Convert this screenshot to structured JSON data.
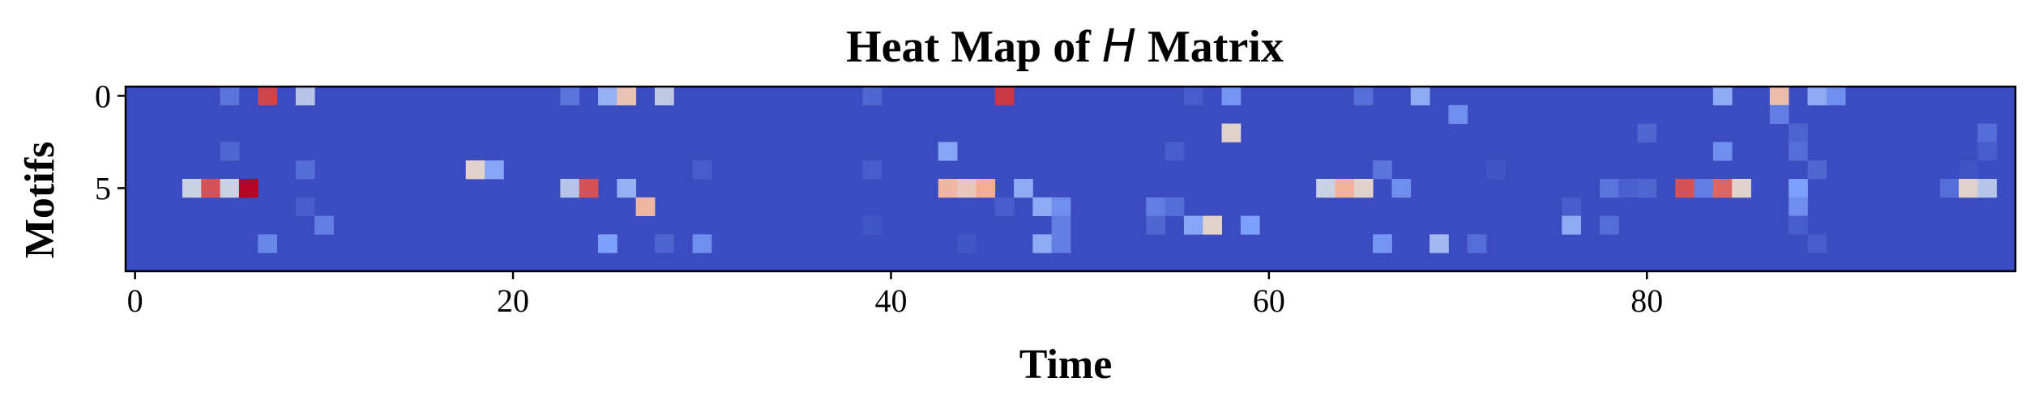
{
  "chart_data": {
    "type": "heatmap",
    "title_prefix": "Heat Map of ",
    "title_var": "H",
    "title_suffix": " Matrix",
    "xlabel": "Time",
    "ylabel": "Motifs",
    "n_cols": 100,
    "n_rows": 10,
    "xticks": [
      0,
      20,
      40,
      60,
      80
    ],
    "yticks": [
      0,
      5
    ],
    "colormap": "coolwarm",
    "background_value": 0.0,
    "cells": [
      [
        0,
        5,
        0.12
      ],
      [
        0,
        7,
        0.9
      ],
      [
        0,
        9,
        0.4
      ],
      [
        0,
        23,
        0.12
      ],
      [
        0,
        25,
        0.32
      ],
      [
        0,
        26,
        0.62
      ],
      [
        0,
        28,
        0.42
      ],
      [
        0,
        39,
        0.08
      ],
      [
        0,
        46,
        0.92
      ],
      [
        0,
        56,
        0.05
      ],
      [
        0,
        58,
        0.22
      ],
      [
        0,
        65,
        0.1
      ],
      [
        0,
        68,
        0.3
      ],
      [
        0,
        84,
        0.3
      ],
      [
        0,
        87,
        0.65
      ],
      [
        0,
        89,
        0.3
      ],
      [
        0,
        90,
        0.2
      ],
      [
        1,
        70,
        0.2
      ],
      [
        1,
        87,
        0.15
      ],
      [
        2,
        58,
        0.55
      ],
      [
        2,
        80,
        0.08
      ],
      [
        2,
        88,
        0.07
      ],
      [
        2,
        98,
        0.1
      ],
      [
        3,
        5,
        0.08
      ],
      [
        3,
        43,
        0.28
      ],
      [
        3,
        55,
        0.05
      ],
      [
        3,
        84,
        0.2
      ],
      [
        3,
        88,
        0.1
      ],
      [
        3,
        98,
        0.05
      ],
      [
        4,
        9,
        0.1
      ],
      [
        4,
        18,
        0.55
      ],
      [
        4,
        19,
        0.28
      ],
      [
        4,
        30,
        0.05
      ],
      [
        4,
        39,
        0.05
      ],
      [
        4,
        66,
        0.12
      ],
      [
        4,
        72,
        0.03
      ],
      [
        4,
        89,
        0.08
      ],
      [
        4,
        97,
        0.02
      ],
      [
        4,
        100,
        0.06
      ],
      [
        5,
        3,
        0.45
      ],
      [
        5,
        4,
        0.88
      ],
      [
        5,
        5,
        0.45
      ],
      [
        5,
        6,
        1.0
      ],
      [
        5,
        23,
        0.4
      ],
      [
        5,
        24,
        0.88
      ],
      [
        5,
        26,
        0.32
      ],
      [
        5,
        43,
        0.68
      ],
      [
        5,
        44,
        0.6
      ],
      [
        5,
        45,
        0.72
      ],
      [
        5,
        47,
        0.3
      ],
      [
        5,
        63,
        0.45
      ],
      [
        5,
        64,
        0.7
      ],
      [
        5,
        65,
        0.55
      ],
      [
        5,
        67,
        0.2
      ],
      [
        5,
        78,
        0.12
      ],
      [
        5,
        79,
        0.06
      ],
      [
        5,
        80,
        0.08
      ],
      [
        5,
        82,
        0.88
      ],
      [
        5,
        83,
        0.15
      ],
      [
        5,
        84,
        0.85
      ],
      [
        5,
        85,
        0.55
      ],
      [
        5,
        88,
        0.25
      ],
      [
        5,
        96,
        0.1
      ],
      [
        5,
        97,
        0.55
      ],
      [
        5,
        98,
        0.4
      ],
      [
        6,
        9,
        0.05
      ],
      [
        6,
        27,
        0.68
      ],
      [
        6,
        46,
        0.05
      ],
      [
        6,
        48,
        0.3
      ],
      [
        6,
        49,
        0.2
      ],
      [
        6,
        54,
        0.15
      ],
      [
        6,
        55,
        0.1
      ],
      [
        6,
        76,
        0.05
      ],
      [
        6,
        88,
        0.2
      ],
      [
        7,
        10,
        0.15
      ],
      [
        7,
        39,
        0.03
      ],
      [
        7,
        49,
        0.15
      ],
      [
        7,
        54,
        0.08
      ],
      [
        7,
        56,
        0.28
      ],
      [
        7,
        57,
        0.55
      ],
      [
        7,
        59,
        0.25
      ],
      [
        7,
        76,
        0.3
      ],
      [
        7,
        78,
        0.1
      ],
      [
        7,
        88,
        0.05
      ],
      [
        8,
        7,
        0.18
      ],
      [
        8,
        25,
        0.25
      ],
      [
        8,
        28,
        0.07
      ],
      [
        8,
        30,
        0.2
      ],
      [
        8,
        44,
        0.03
      ],
      [
        8,
        48,
        0.3
      ],
      [
        8,
        49,
        0.15
      ],
      [
        8,
        66,
        0.22
      ],
      [
        8,
        69,
        0.35
      ],
      [
        8,
        71,
        0.1
      ],
      [
        8,
        89,
        0.05
      ]
    ]
  }
}
